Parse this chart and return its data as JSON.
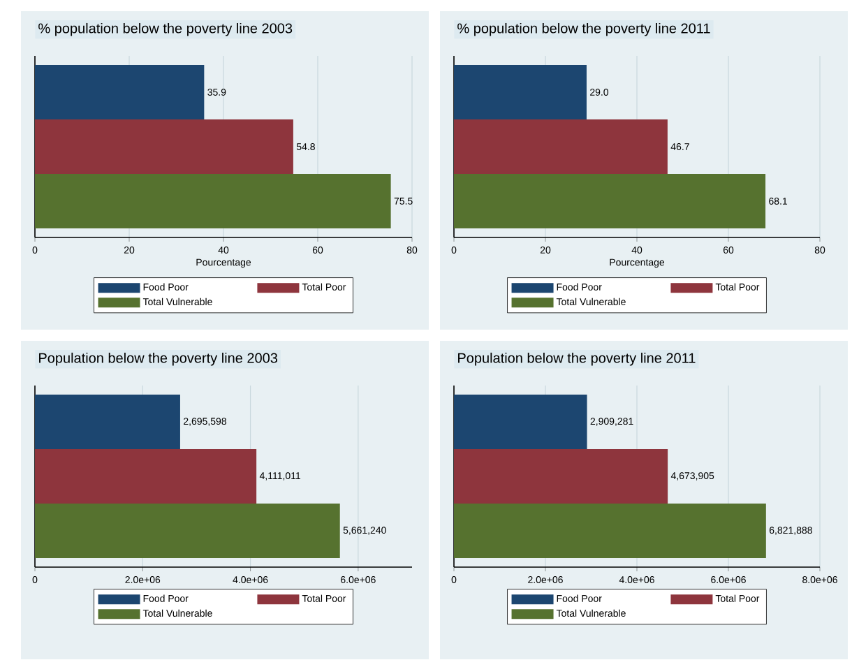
{
  "chart_data": [
    {
      "type": "bar",
      "orientation": "horizontal",
      "title": "% population below the poverty line 2003",
      "xlabel": "Pourcentage",
      "categories": [
        null
      ],
      "series": [
        {
          "name": "Food Poor",
          "color": "#1c4670",
          "values": [
            35.9
          ],
          "value_labels": [
            "35.9"
          ]
        },
        {
          "name": "Total Poor",
          "color": "#8e353d",
          "values": [
            54.8
          ],
          "value_labels": [
            "54.8"
          ]
        },
        {
          "name": "Total Vulnerable",
          "color": "#56722f",
          "values": [
            75.5
          ],
          "value_labels": [
            "75.5"
          ]
        }
      ],
      "xlim": [
        0,
        80
      ],
      "xticks": [
        0,
        20,
        40,
        60,
        80
      ],
      "grid": "x",
      "legend": "bottom"
    },
    {
      "type": "bar",
      "orientation": "horizontal",
      "title": "% population below the poverty line 2011",
      "xlabel": "Pourcentage",
      "categories": [
        null
      ],
      "series": [
        {
          "name": "Food Poor",
          "color": "#1c4670",
          "values": [
            29.0
          ],
          "value_labels": [
            "29.0"
          ]
        },
        {
          "name": "Total Poor",
          "color": "#8e353d",
          "values": [
            46.7
          ],
          "value_labels": [
            "46.7"
          ]
        },
        {
          "name": "Total Vulnerable",
          "color": "#56722f",
          "values": [
            68.1
          ],
          "value_labels": [
            "68.1"
          ]
        }
      ],
      "xlim": [
        0,
        80
      ],
      "xticks": [
        0,
        20,
        40,
        60,
        80
      ],
      "grid": "x",
      "legend": "bottom"
    },
    {
      "type": "bar",
      "orientation": "horizontal",
      "title": "Population below the poverty line 2003",
      "categories": [
        null
      ],
      "series": [
        {
          "name": "Food Poor",
          "color": "#1c4670",
          "values": [
            2695598
          ],
          "value_labels": [
            "2,695,598"
          ]
        },
        {
          "name": "Total Poor",
          "color": "#8e353d",
          "values": [
            4111011
          ],
          "value_labels": [
            "4,111,011"
          ]
        },
        {
          "name": "Total Vulnerable",
          "color": "#56722f",
          "values": [
            5661240
          ],
          "value_labels": [
            "5,661,240"
          ]
        }
      ],
      "xlim": [
        0,
        7000000
      ],
      "xticks": [
        0,
        {
          "value": 2000000,
          "label": "2.0e+06"
        },
        {
          "value": 4000000,
          "label": "4.0e+06"
        },
        {
          "value": 6000000,
          "label": "6.0e+06"
        }
      ],
      "grid": "x",
      "legend": "bottom"
    },
    {
      "type": "bar",
      "orientation": "horizontal",
      "title": "Population below the poverty line 2011",
      "categories": [
        null
      ],
      "series": [
        {
          "name": "Food Poor",
          "color": "#1c4670",
          "values": [
            2909281
          ],
          "value_labels": [
            "2,909,281"
          ]
        },
        {
          "name": "Total Poor",
          "color": "#8e353d",
          "values": [
            4673905
          ],
          "value_labels": [
            "4,673,905"
          ]
        },
        {
          "name": "Total Vulnerable",
          "color": "#56722f",
          "values": [
            6821888
          ],
          "value_labels": [
            "6,821,888"
          ]
        }
      ],
      "xlim": [
        0,
        8000000
      ],
      "xticks": [
        0,
        {
          "value": 2000000,
          "label": "2.0e+06"
        },
        {
          "value": 4000000,
          "label": "4.0e+06"
        },
        {
          "value": 6000000,
          "label": "6.0e+06"
        },
        {
          "value": 8000000,
          "label": "8.0e+06"
        }
      ],
      "grid": "x",
      "legend": "bottom"
    }
  ]
}
